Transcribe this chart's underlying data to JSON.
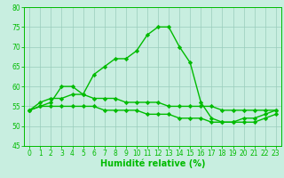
{
  "x": [
    0,
    1,
    2,
    3,
    4,
    5,
    6,
    7,
    8,
    9,
    10,
    11,
    12,
    13,
    14,
    15,
    16,
    17,
    18,
    19,
    20,
    21,
    22,
    23
  ],
  "line_main": [
    54,
    55,
    56,
    60,
    60,
    58,
    63,
    65,
    67,
    67,
    69,
    73,
    75,
    75,
    70,
    66,
    56,
    52,
    51,
    51,
    52,
    52,
    53,
    54
  ],
  "line_upper": [
    54,
    56,
    57,
    57,
    58,
    58,
    57,
    57,
    57,
    56,
    56,
    56,
    56,
    55,
    55,
    55,
    55,
    55,
    54,
    54,
    54,
    54,
    54,
    54
  ],
  "line_lower": [
    54,
    55,
    55,
    55,
    55,
    55,
    55,
    54,
    54,
    54,
    54,
    53,
    53,
    53,
    52,
    52,
    52,
    51,
    51,
    51,
    51,
    51,
    52,
    53
  ],
  "xlim": [
    -0.5,
    23.5
  ],
  "ylim": [
    45,
    80
  ],
  "yticks": [
    45,
    50,
    55,
    60,
    65,
    70,
    75,
    80
  ],
  "xticks": [
    0,
    1,
    2,
    3,
    4,
    5,
    6,
    7,
    8,
    9,
    10,
    11,
    12,
    13,
    14,
    15,
    16,
    17,
    18,
    19,
    20,
    21,
    22,
    23
  ],
  "xlabel": "Humidité relative (%)",
  "line_color": "#00bb00",
  "bg_color": "#c8eee0",
  "grid_color": "#99ccbb",
  "marker": "D",
  "marker_size": 2.2,
  "linewidth": 1.0,
  "xlabel_fontsize": 7,
  "tick_fontsize": 5.5
}
